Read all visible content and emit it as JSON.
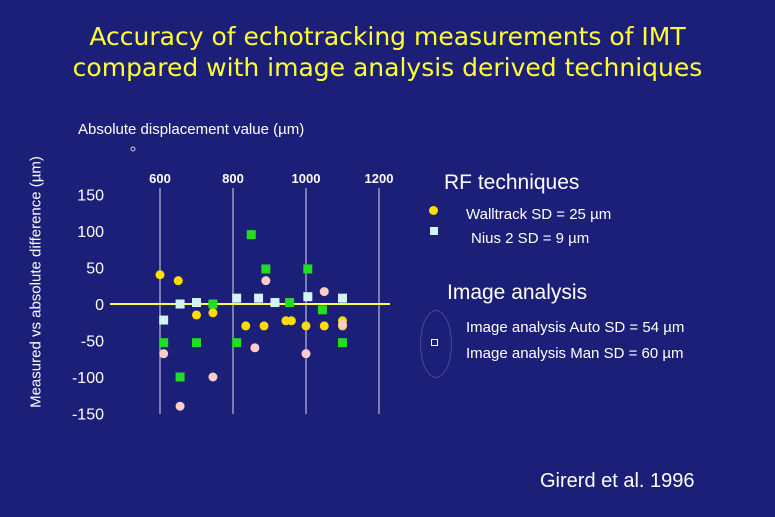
{
  "title": {
    "line1": "Accuracy of echotracking measurements of IMT",
    "line2": "compared with image analysis derived techniques"
  },
  "colors": {
    "background": "#1c1f78",
    "title": "#ffff33",
    "walltrack": "#ffdd00",
    "nius": "#d4f3f3",
    "ia_auto": "#22dd22",
    "ia_man": "#ffcccc",
    "zero_line": "#ffff44"
  },
  "legend": {
    "rf_heading": "RF techniques",
    "walltrack": "Walltrack SD = 25 µm",
    "nius": "Nius 2 SD = 9 µm",
    "ia_heading": "Image analysis",
    "ia_auto": "Image analysis Auto SD = 54 µm",
    "ia_man": "Image analysis Man  SD = 60 µm"
  },
  "citation": "Girerd et al. 1996",
  "chart_data": {
    "type": "scatter",
    "xlabel": "Absolute displacement value (µm)",
    "ylabel": "Measured vs absolute difference (µm)",
    "x_ticks": [
      600,
      800,
      1000,
      1200
    ],
    "y_ticks": [
      150,
      100,
      50,
      0,
      -50,
      -100,
      -150
    ],
    "xlim": [
      590,
      1220
    ],
    "ylim": [
      -150,
      150
    ],
    "gridlines_x": [
      600,
      800,
      1000,
      1200
    ],
    "series": [
      {
        "name": "Walltrack SD = 25 µm",
        "marker": "circle",
        "color": "#ffdd00",
        "x": [
          600,
          650,
          700,
          745,
          835,
          885,
          945,
          960,
          1000,
          1050,
          1100,
          1100
        ],
        "y": [
          40,
          32,
          -15,
          -12,
          -30,
          -30,
          -23,
          -23,
          -30,
          -30,
          -23,
          -30
        ]
      },
      {
        "name": "Nius 2 SD = 9 µm",
        "marker": "square",
        "color": "#d4f3f3",
        "x": [
          610,
          655,
          700,
          810,
          870,
          915,
          1005,
          1100
        ],
        "y": [
          -22,
          0,
          2,
          8,
          8,
          2,
          10,
          8
        ]
      },
      {
        "name": "Image analysis Auto SD = 54 µm",
        "marker": "square",
        "color": "#22dd22",
        "x": [
          610,
          655,
          700,
          745,
          810,
          850,
          890,
          955,
          1005,
          1045,
          1100
        ],
        "y": [
          -53,
          -100,
          -53,
          0,
          -53,
          95,
          48,
          2,
          48,
          -8,
          -53
        ]
      },
      {
        "name": "Image analysis Man  SD = 60 µm",
        "marker": "circle",
        "color": "#ffcccc",
        "x": [
          610,
          655,
          745,
          860,
          890,
          1000,
          1050,
          1100
        ],
        "y": [
          -68,
          -140,
          -100,
          -60,
          32,
          -68,
          17,
          -28
        ]
      }
    ]
  }
}
